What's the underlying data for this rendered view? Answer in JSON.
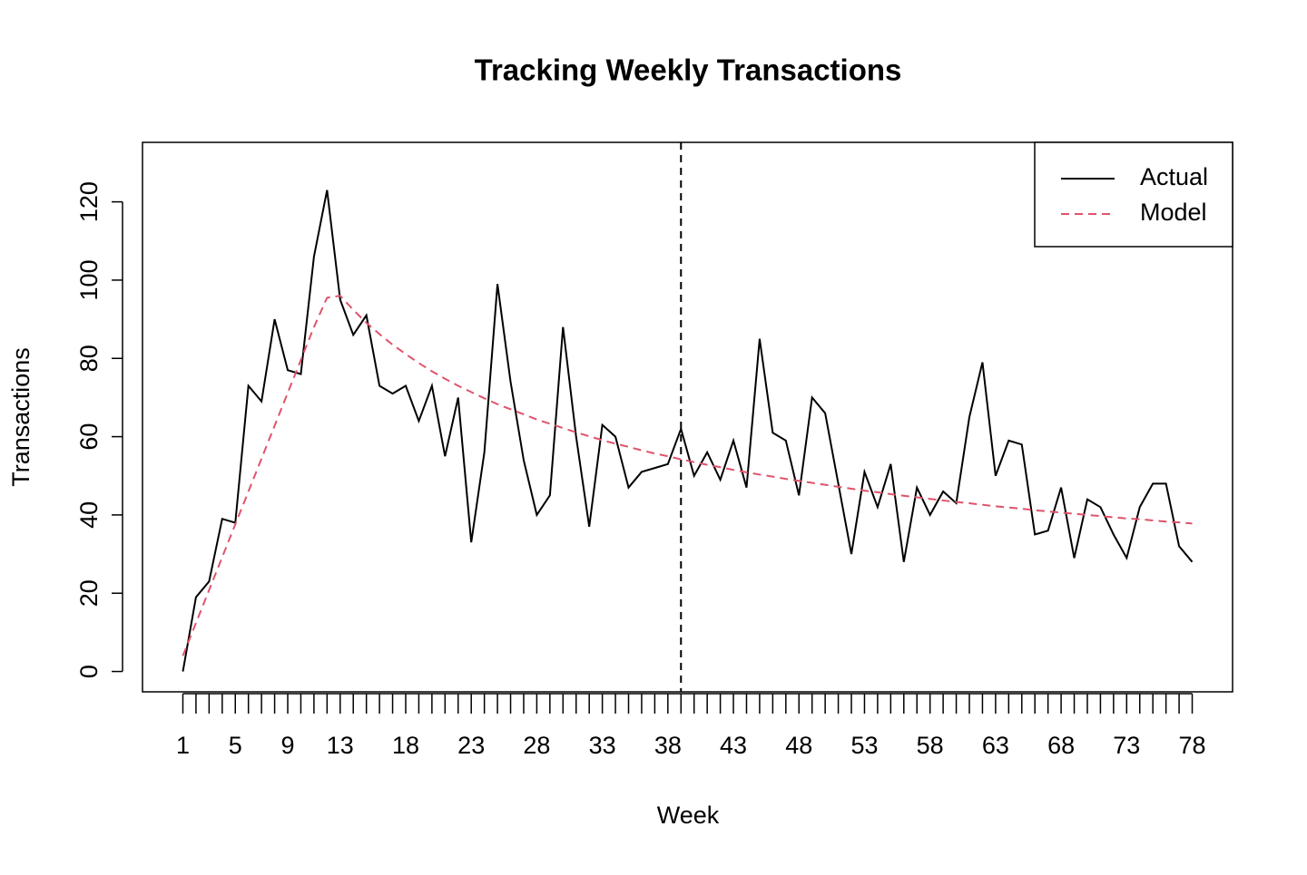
{
  "chart_data": {
    "type": "line",
    "title": "Tracking Weekly Transactions",
    "xlabel": "Week",
    "ylabel": "Transactions",
    "x": [
      1,
      2,
      3,
      4,
      5,
      6,
      7,
      8,
      9,
      10,
      11,
      12,
      13,
      14,
      15,
      16,
      17,
      18,
      19,
      20,
      21,
      22,
      23,
      24,
      25,
      26,
      27,
      28,
      29,
      30,
      31,
      32,
      33,
      34,
      35,
      36,
      37,
      38,
      39,
      40,
      41,
      42,
      43,
      44,
      45,
      46,
      47,
      48,
      49,
      50,
      51,
      52,
      53,
      54,
      55,
      56,
      57,
      58,
      59,
      60,
      61,
      62,
      63,
      64,
      65,
      66,
      67,
      68,
      69,
      70,
      71,
      72,
      73,
      74,
      75,
      76,
      77,
      78
    ],
    "series": [
      {
        "name": "Actual",
        "color": "#000000",
        "dash": false,
        "values": [
          0,
          19,
          23,
          39,
          38,
          73,
          69,
          90,
          77,
          76,
          106,
          123,
          95,
          86,
          91,
          73,
          71,
          73,
          64,
          73,
          55,
          70,
          33,
          56,
          99,
          74,
          54,
          40,
          45,
          88,
          60,
          37,
          63,
          60,
          47,
          51,
          52,
          53,
          62,
          50,
          56,
          49,
          59,
          47,
          85,
          61,
          59,
          45,
          70,
          66,
          48,
          30,
          51,
          42,
          53,
          28,
          47,
          40,
          46,
          43,
          65,
          79,
          50,
          59,
          58,
          35,
          36,
          47,
          29,
          44,
          42,
          35,
          29,
          42,
          48,
          48,
          32,
          28
        ]
      },
      {
        "name": "Model",
        "color": "#DF536B",
        "dash": true,
        "values": [
          4,
          12.4,
          20.8,
          29.2,
          37.6,
          46,
          54.4,
          62.8,
          71.2,
          79.6,
          88,
          95.5,
          96,
          92.4,
          89.1,
          86.2,
          83.5,
          81.1,
          78.8,
          76.7,
          74.8,
          73,
          71.4,
          69.8,
          68.3,
          67,
          65.7,
          64.4,
          63.3,
          62.2,
          61.1,
          60.1,
          59.1,
          58.2,
          57.4,
          56.5,
          55.7,
          55,
          54.2,
          53.5,
          52.8,
          52.2,
          51.5,
          50.9,
          50.3,
          49.8,
          49.2,
          48.7,
          48.2,
          47.7,
          47.2,
          46.7,
          46.2,
          45.8,
          45.3,
          44.9,
          44.5,
          44.1,
          43.7,
          43.3,
          43,
          42.6,
          42.2,
          41.9,
          41.6,
          41.2,
          40.9,
          40.6,
          40.3,
          40,
          39.7,
          39.4,
          39.1,
          38.9,
          38.6,
          38.3,
          38.1,
          37.8
        ]
      }
    ],
    "vline": 39,
    "xlim": [
      -2.08,
      81.08
    ],
    "ylim": [
      -5.2,
      135.2
    ],
    "xticks": [
      1,
      5,
      9,
      13,
      18,
      23,
      28,
      33,
      38,
      43,
      48,
      53,
      58,
      63,
      68,
      73,
      78
    ],
    "xminorticks": [
      1,
      2,
      3,
      4,
      5,
      6,
      7,
      8,
      9,
      10,
      11,
      12,
      13,
      14,
      15,
      16,
      17,
      18,
      19,
      20,
      21,
      22,
      23,
      24,
      25,
      26,
      27,
      28,
      29,
      30,
      31,
      32,
      33,
      34,
      35,
      36,
      37,
      38,
      39,
      40,
      41,
      42,
      43,
      44,
      45,
      46,
      47,
      48,
      49,
      50,
      51,
      52,
      53,
      54,
      55,
      56,
      57,
      58,
      59,
      60,
      61,
      62,
      63,
      64,
      65,
      66,
      67,
      68,
      69,
      70,
      71,
      72,
      73,
      74,
      75,
      76,
      77,
      78
    ],
    "yticks": [
      0,
      20,
      40,
      60,
      80,
      100,
      120
    ],
    "legend": "top-right"
  }
}
